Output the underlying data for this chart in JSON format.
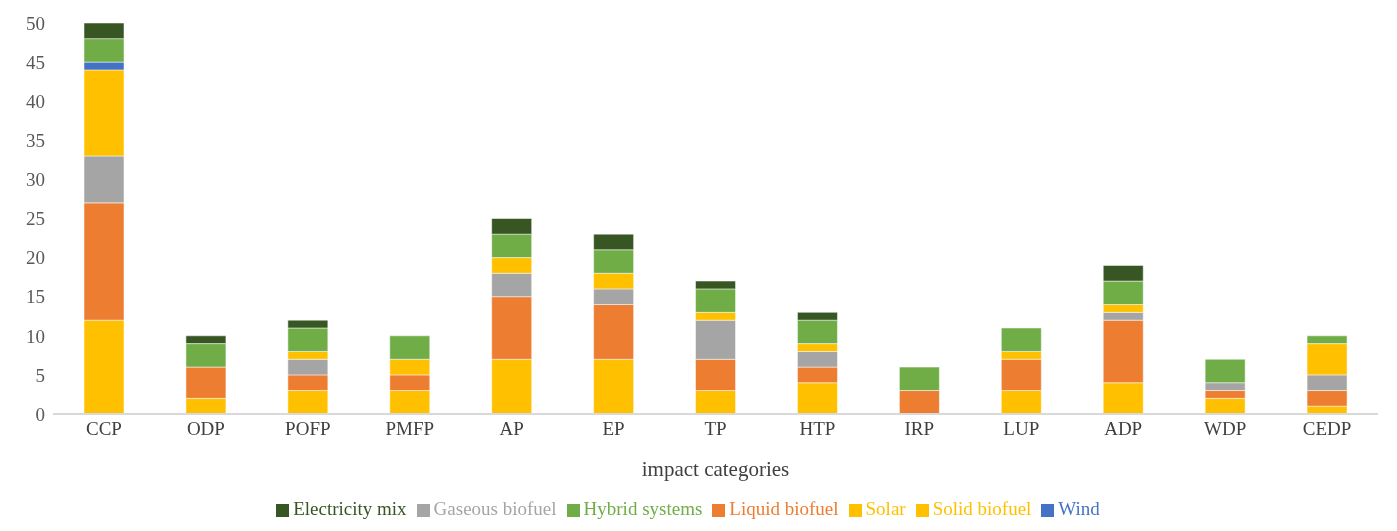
{
  "chart_data": {
    "type": "bar",
    "stacked": true,
    "xlabel": "impact categories",
    "categories": [
      "CCP",
      "ODP",
      "POFP",
      "PMFP",
      "AP",
      "EP",
      "TP",
      "HTP",
      "IRP",
      "LUP",
      "ADP",
      "WDP",
      "CEDP"
    ],
    "series": [
      {
        "name": "Solid biofuel",
        "color": "#ffc000",
        "values": [
          12,
          2,
          3,
          3,
          7,
          7,
          3,
          4,
          0,
          3,
          4,
          2,
          1
        ]
      },
      {
        "name": "Liquid biofuel",
        "color": "#ed7d31",
        "values": [
          15,
          4,
          2,
          2,
          8,
          7,
          4,
          2,
          3,
          4,
          8,
          1,
          2
        ]
      },
      {
        "name": "Gaseous biofuel",
        "color": "#a5a5a5",
        "values": [
          6,
          0,
          2,
          0,
          3,
          2,
          5,
          2,
          0,
          0,
          1,
          1,
          2
        ]
      },
      {
        "name": "Solar",
        "color": "#ffc000",
        "values": [
          11,
          0,
          1,
          2,
          2,
          2,
          1,
          1,
          0,
          1,
          1,
          0,
          4
        ]
      },
      {
        "name": "Wind",
        "color": "#4472c4",
        "values": [
          1,
          0,
          0,
          0,
          0,
          0,
          0,
          0,
          0,
          0,
          0,
          0,
          0
        ]
      },
      {
        "name": "Hybrid systems",
        "color": "#70ad47",
        "values": [
          3,
          3,
          3,
          3,
          3,
          3,
          3,
          3,
          3,
          3,
          3,
          3,
          1
        ]
      },
      {
        "name": "Electricity mix",
        "color": "#375623",
        "values": [
          2,
          1,
          1,
          0,
          2,
          2,
          1,
          1,
          0,
          0,
          2,
          0,
          0
        ]
      }
    ],
    "ylim": [
      0,
      50
    ],
    "yticks": [
      0,
      5,
      10,
      15,
      20,
      25,
      30,
      35,
      40,
      45,
      50
    ],
    "grid": false,
    "legend": "bottom"
  }
}
